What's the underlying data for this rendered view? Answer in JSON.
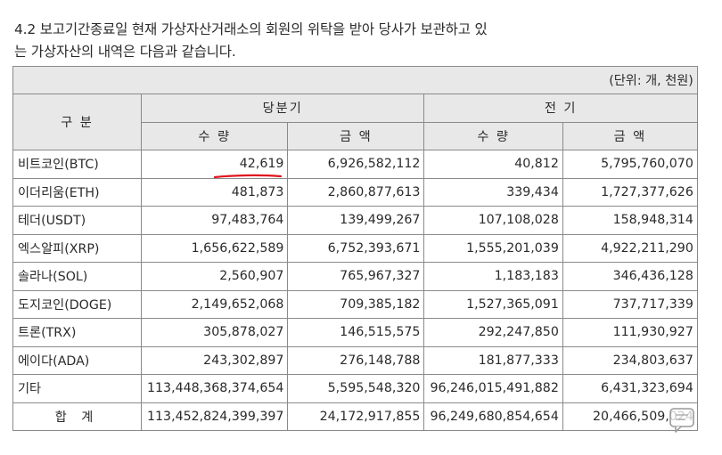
{
  "intro": {
    "line1": "4.2 보고기간종료일 현재 가상자산거래소의 회원의 위탁을 받아 당사가 보관하고 있",
    "line2": "는 가상자산의 내역은 다음과 같습니다."
  },
  "table": {
    "unit": "(단위: 개, 천원)",
    "header": {
      "category": "구 분",
      "current": "당분기",
      "prior": "전 기",
      "qty": "수 량",
      "amount": "금 액"
    },
    "rows": [
      {
        "name": "비트코인(BTC)",
        "cur_qty": "42,619",
        "cur_amt": "6,926,582,112",
        "pri_qty": "40,812",
        "pri_amt": "5,795,760,070"
      },
      {
        "name": "이더리움(ETH)",
        "cur_qty": "481,873",
        "cur_amt": "2,860,877,613",
        "pri_qty": "339,434",
        "pri_amt": "1,727,377,626"
      },
      {
        "name": "테더(USDT)",
        "cur_qty": "97,483,764",
        "cur_amt": "139,499,267",
        "pri_qty": "107,108,028",
        "pri_amt": "158,948,314"
      },
      {
        "name": "엑스알피(XRP)",
        "cur_qty": "1,656,622,589",
        "cur_amt": "6,752,393,671",
        "pri_qty": "1,555,201,039",
        "pri_amt": "4,922,211,290"
      },
      {
        "name": "솔라나(SOL)",
        "cur_qty": "2,560,907",
        "cur_amt": "765,967,327",
        "pri_qty": "1,183,183",
        "pri_amt": "346,436,128"
      },
      {
        "name": "도지코인(DOGE)",
        "cur_qty": "2,149,652,068",
        "cur_amt": "709,385,182",
        "pri_qty": "1,527,365,091",
        "pri_amt": "737,717,339"
      },
      {
        "name": "트론(TRX)",
        "cur_qty": "305,878,027",
        "cur_amt": "146,515,575",
        "pri_qty": "292,247,850",
        "pri_amt": "111,930,927"
      },
      {
        "name": "에이다(ADA)",
        "cur_qty": "243,302,897",
        "cur_amt": "276,148,788",
        "pri_qty": "181,877,333",
        "pri_amt": "234,803,637"
      },
      {
        "name": "기타",
        "cur_qty": "113,448,368,374,654",
        "cur_amt": "5,595,548,320",
        "pri_qty": "96,246,015,491,882",
        "pri_amt": "6,431,323,694"
      }
    ],
    "total": {
      "name": "합 계",
      "cur_qty": "113,452,824,399,397",
      "cur_amt": "24,172,917,855",
      "pri_qty": "96,249,680,854,654",
      "pri_amt": "20,466,509,024"
    }
  },
  "colors": {
    "header_bg": "#e8e8e8",
    "border": "#8a8a8a",
    "annotation": "#e0141e"
  },
  "icons": {
    "annotation": "red-underline-mark",
    "overlay": "comment-bubble-icon"
  }
}
